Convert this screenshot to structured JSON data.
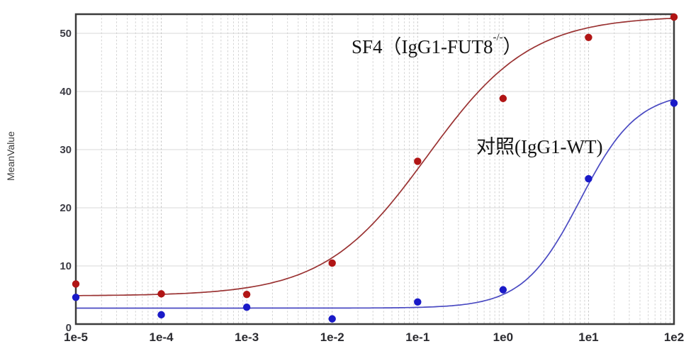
{
  "annotations": {
    "sf4": {
      "prefix": "SF4（IgG1-FUT8",
      "sup": "-/-",
      "suffix": "）"
    },
    "control": {
      "text": "对照(IgG1-WT)"
    }
  },
  "chart_data": {
    "type": "scatter",
    "title": "",
    "xlabel": "",
    "ylabel": "MeanValue",
    "x_scale": "log",
    "xlim": [
      1e-05,
      100
    ],
    "ylim": [
      0,
      53.3
    ],
    "x_tick_labels": [
      "1e-5",
      "1e-4",
      "1e-3",
      "1e-2",
      "1e-1",
      "1e0",
      "1e1",
      "1e2"
    ],
    "x_tick_values": [
      1e-05,
      0.0001,
      0.001,
      0.01,
      0.1,
      1,
      10,
      100
    ],
    "y_ticks": [
      0,
      10,
      20,
      30,
      40,
      50
    ],
    "grid": "on",
    "legend_position": "none",
    "colors": {
      "frame": "#3b3b3b",
      "grid_horizontal": "#d9d9d9",
      "grid_minor": "#d2d2d2",
      "grid_major": "#c4c4c4",
      "tick_label": "#3c3c44",
      "annotation_text": "#141414"
    },
    "series": [
      {
        "name": "SF4（IgG1-FUT8-/-）",
        "point_color": "#b11515",
        "line_color": "#9a3232",
        "x": [
          1e-05,
          0.0001,
          0.001,
          0.01,
          0.1,
          1,
          10,
          100
        ],
        "y": [
          6.9,
          5.2,
          5.1,
          10.5,
          28,
          38.8,
          49.3,
          52.8
        ],
        "fit_4pl": {
          "bottom": 4.85,
          "top": 53,
          "ec50": 0.13,
          "hill": 0.72
        }
      },
      {
        "name": "对照(IgG1-WT)",
        "point_color": "#1a1ac8",
        "line_color": "#4a4ac2",
        "x": [
          1e-05,
          0.0001,
          0.001,
          0.01,
          0.1,
          1,
          10,
          100
        ],
        "y": [
          4.6,
          1.6,
          2.9,
          0.9,
          3.8,
          5.9,
          25,
          38
        ],
        "fit_4pl": {
          "bottom": 2.75,
          "top": 40,
          "ec50": 8,
          "hill": 1.3
        }
      }
    ]
  }
}
